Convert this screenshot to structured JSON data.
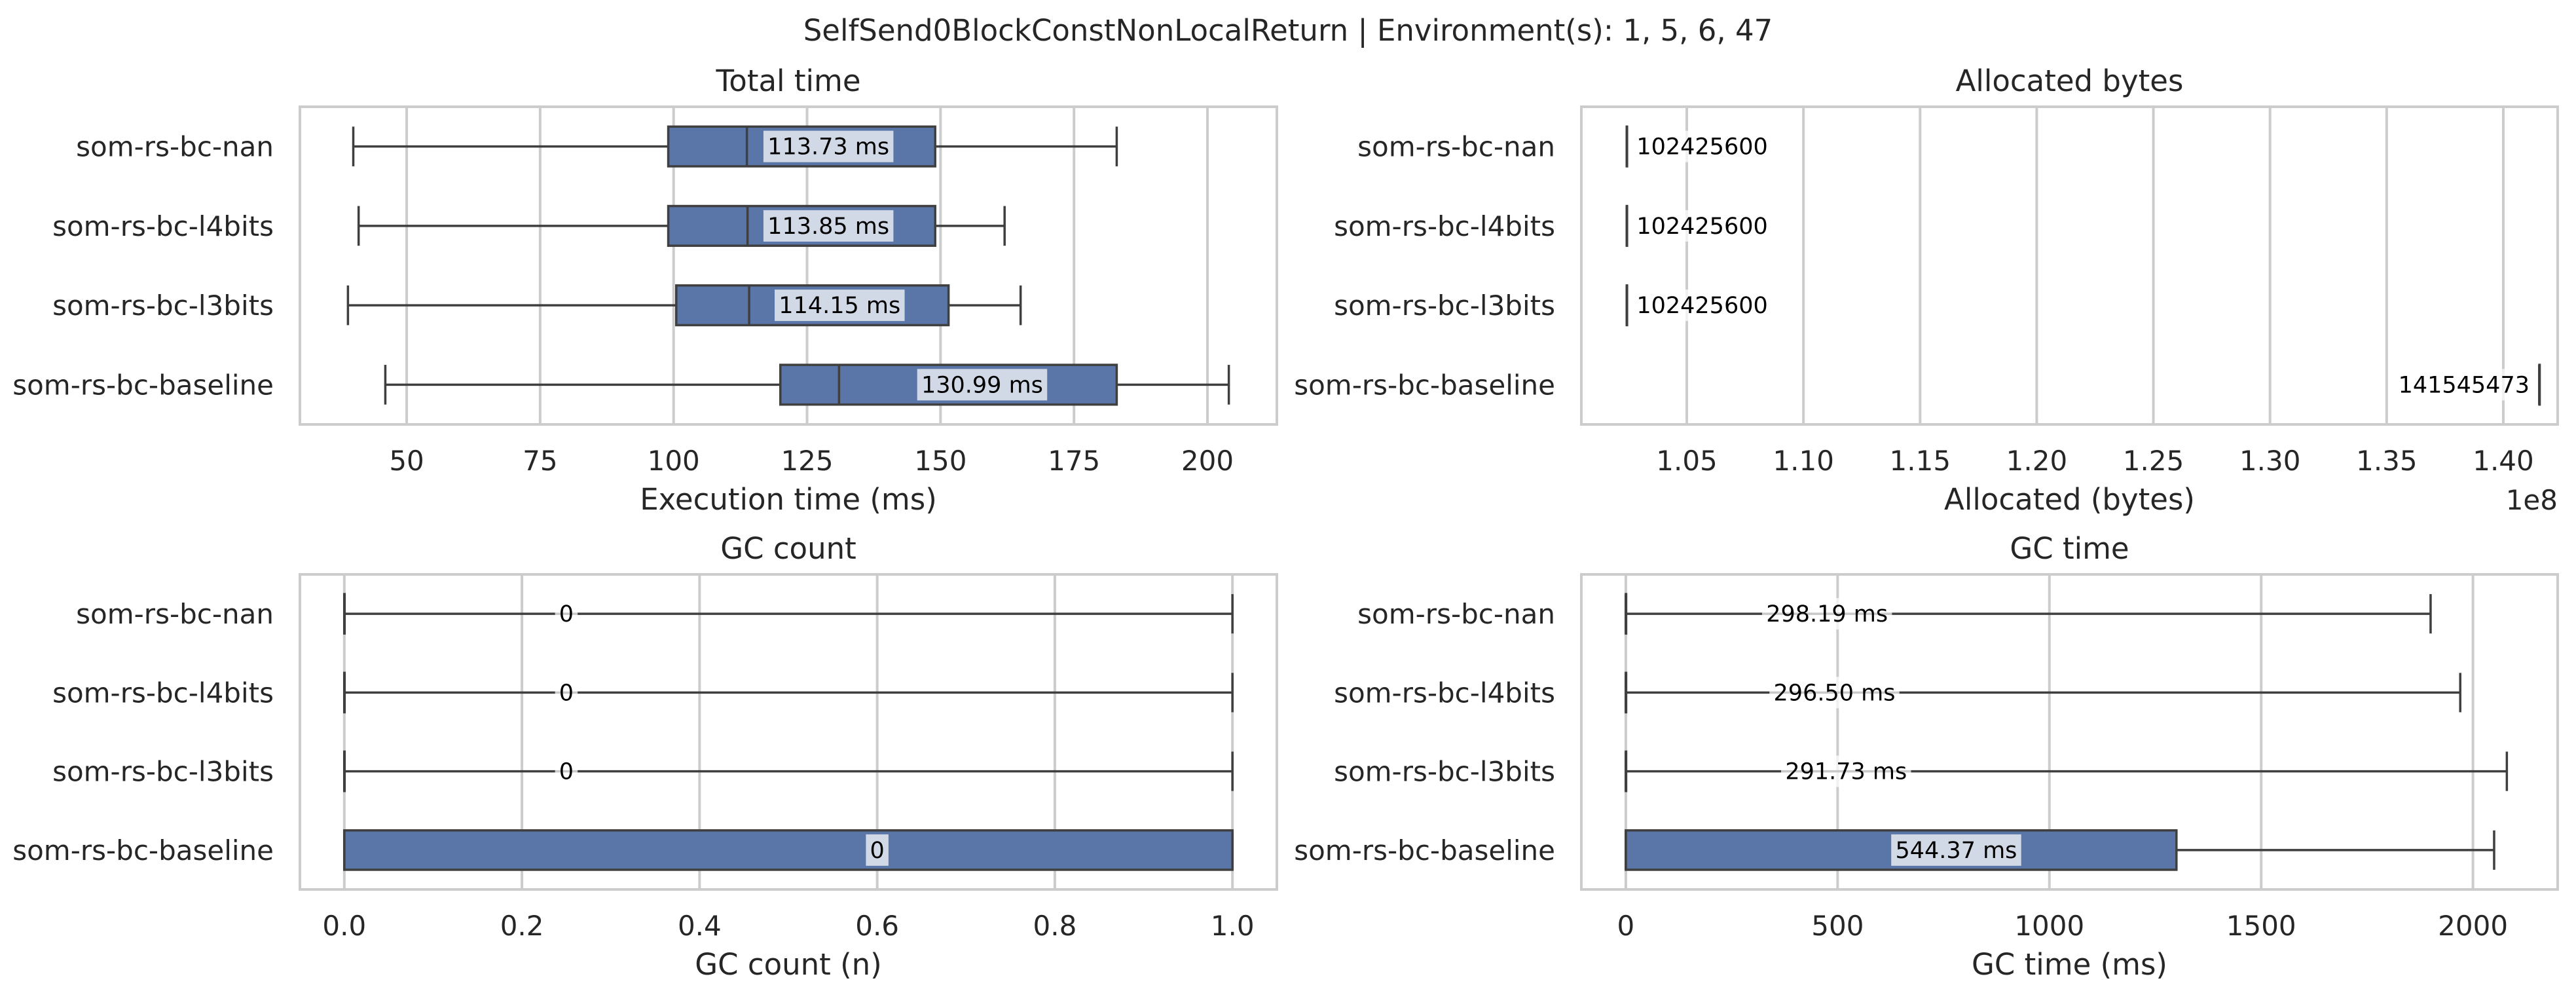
{
  "suptitle": "SelfSend0BlockConstNonLocalReturn | Environment(s): 1, 5, 6, 47",
  "colors": {
    "box": "#5a76a8",
    "grid": "#cccccc",
    "line": "#3f3f3f"
  },
  "chart_data": [
    {
      "id": "total-time",
      "type": "box",
      "title": "Total time",
      "xlabel": "Execution time (ms)",
      "xlim": [
        30,
        213
      ],
      "xticks": [
        50,
        75,
        100,
        125,
        150,
        175,
        200
      ],
      "xtick_labels": [
        "50",
        "75",
        "100",
        "125",
        "150",
        "175",
        "200"
      ],
      "offset_label": "",
      "categories": [
        "som-rs-bc-nan",
        "som-rs-bc-l4bits",
        "som-rs-bc-l3bits",
        "som-rs-bc-baseline"
      ],
      "boxes": [
        {
          "whislo": 40,
          "q1": 99,
          "med": 113.73,
          "q3": 149,
          "whishi": 183,
          "label": "113.73 ms"
        },
        {
          "whislo": 41,
          "q1": 99,
          "med": 113.85,
          "q3": 149,
          "whishi": 162,
          "label": "113.85 ms"
        },
        {
          "whislo": 39,
          "q1": 100.5,
          "med": 114.15,
          "q3": 151.5,
          "whishi": 165,
          "label": "114.15 ms"
        },
        {
          "whislo": 46,
          "q1": 120,
          "med": 130.99,
          "q3": 183,
          "whishi": 204,
          "label": "130.99 ms"
        }
      ]
    },
    {
      "id": "allocated-bytes",
      "type": "box",
      "title": "Allocated bytes",
      "xlabel": "Allocated (bytes)",
      "xlim": [
        1.0048,
        1.4233
      ],
      "xticks": [
        1.05,
        1.1,
        1.15,
        1.2,
        1.25,
        1.3,
        1.35,
        1.4
      ],
      "xtick_labels": [
        "1.05",
        "1.10",
        "1.15",
        "1.20",
        "1.25",
        "1.30",
        "1.35",
        "1.40"
      ],
      "offset_label": "1e8",
      "categories": [
        "som-rs-bc-nan",
        "som-rs-bc-l4bits",
        "som-rs-bc-l3bits",
        "som-rs-bc-baseline"
      ],
      "boxes": [
        {
          "whislo": 1.024256,
          "q1": 1.024256,
          "med": 1.024256,
          "q3": 1.024256,
          "whishi": 1.024256,
          "label": "102425600"
        },
        {
          "whislo": 1.024256,
          "q1": 1.024256,
          "med": 1.024256,
          "q3": 1.024256,
          "whishi": 1.024256,
          "label": "102425600"
        },
        {
          "whislo": 1.024256,
          "q1": 1.024256,
          "med": 1.024256,
          "q3": 1.024256,
          "whishi": 1.024256,
          "label": "102425600"
        },
        {
          "whislo": 1.41545473,
          "q1": 1.41545473,
          "med": 1.41545473,
          "q3": 1.41545473,
          "whishi": 1.41545473,
          "label": "141545473"
        }
      ]
    },
    {
      "id": "gc-count",
      "type": "box",
      "title": "GC count",
      "xlabel": "GC count (n)",
      "xlim": [
        -0.05,
        1.05
      ],
      "xticks": [
        0,
        0.2,
        0.4,
        0.6,
        0.8,
        1.0
      ],
      "xtick_labels": [
        "0.0",
        "0.2",
        "0.4",
        "0.6",
        "0.8",
        "1.0"
      ],
      "offset_label": "",
      "categories": [
        "som-rs-bc-nan",
        "som-rs-bc-l4bits",
        "som-rs-bc-l3bits",
        "som-rs-bc-baseline"
      ],
      "boxes": [
        {
          "whislo": 0,
          "q1": 0,
          "med": 0,
          "q3": 0,
          "whishi": 1,
          "label": "0"
        },
        {
          "whislo": 0,
          "q1": 0,
          "med": 0,
          "q3": 0,
          "whishi": 1,
          "label": "0"
        },
        {
          "whislo": 0,
          "q1": 0,
          "med": 0,
          "q3": 0,
          "whishi": 1,
          "label": "0"
        },
        {
          "whislo": 0,
          "q1": 0,
          "med": 0,
          "q3": 1,
          "whishi": 1,
          "label": "0"
        }
      ]
    },
    {
      "id": "gc-time",
      "type": "box",
      "title": "GC time",
      "xlabel": "GC time (ms)",
      "xlim": [
        -105,
        2200
      ],
      "xticks": [
        0,
        500,
        1000,
        1500,
        2000
      ],
      "xtick_labels": [
        "0",
        "500",
        "1000",
        "1500",
        "2000"
      ],
      "offset_label": "",
      "categories": [
        "som-rs-bc-nan",
        "som-rs-bc-l4bits",
        "som-rs-bc-l3bits",
        "som-rs-bc-baseline"
      ],
      "boxes": [
        {
          "whislo": 0,
          "q1": 0,
          "med": 0,
          "q3": 0,
          "whishi": 1900,
          "label": "298.19 ms"
        },
        {
          "whislo": 0,
          "q1": 0,
          "med": 0,
          "q3": 0,
          "whishi": 1970,
          "label": "296.50 ms"
        },
        {
          "whislo": 0,
          "q1": 0,
          "med": 0,
          "q3": 0,
          "whishi": 2080,
          "label": "291.73 ms"
        },
        {
          "whislo": 0,
          "q1": 0,
          "med": 0,
          "q3": 1300,
          "whishi": 2050,
          "label": "544.37 ms"
        }
      ]
    }
  ]
}
